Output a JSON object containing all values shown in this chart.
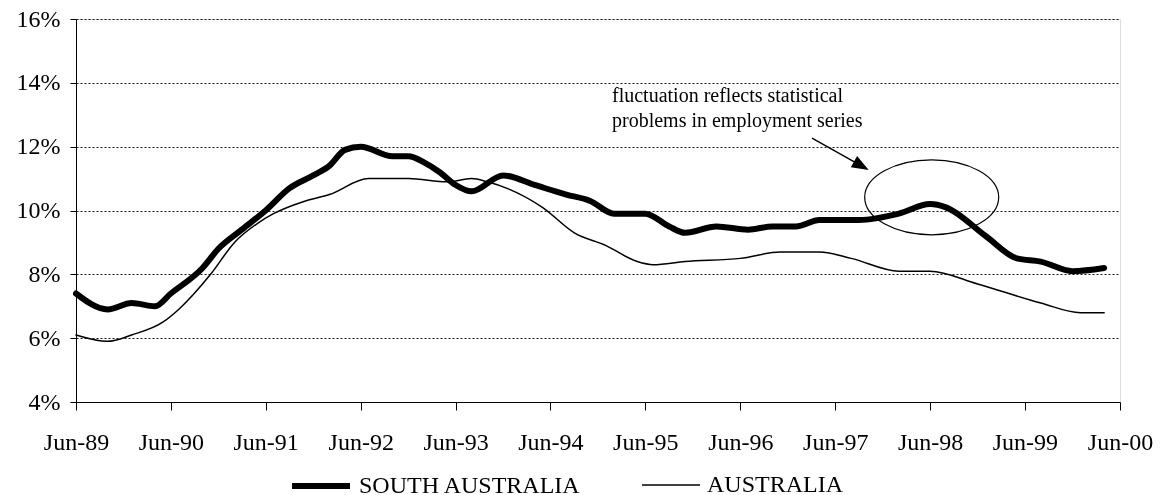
{
  "chart_data": {
    "type": "line",
    "xlim": [
      "1989-06",
      "2000-06"
    ],
    "xticks": [
      {
        "value": "1989-06",
        "label": "Jun-89"
      },
      {
        "value": "1990-06",
        "label": "Jun-90"
      },
      {
        "value": "1991-06",
        "label": "Jun-91"
      },
      {
        "value": "1992-06",
        "label": "Jun-92"
      },
      {
        "value": "1993-06",
        "label": "Jun-93"
      },
      {
        "value": "1994-06",
        "label": "Jun-94"
      },
      {
        "value": "1995-06",
        "label": "Jun-95"
      },
      {
        "value": "1996-06",
        "label": "Jun-96"
      },
      {
        "value": "1997-06",
        "label": "Jun-97"
      },
      {
        "value": "1998-06",
        "label": "Jun-98"
      },
      {
        "value": "1999-06",
        "label": "Jun-99"
      },
      {
        "value": "2000-06",
        "label": "Jun-00"
      }
    ],
    "ylim": [
      4,
      16
    ],
    "yticks": [
      {
        "value": 4,
        "label": "4%"
      },
      {
        "value": 6,
        "label": "6%"
      },
      {
        "value": 8,
        "label": "8%"
      },
      {
        "value": 10,
        "label": "10%"
      },
      {
        "value": 12,
        "label": "12%"
      },
      {
        "value": 14,
        "label": "14%"
      },
      {
        "value": 16,
        "label": "16%"
      }
    ],
    "grid": "y",
    "legend": "bottom",
    "line_style": "solid",
    "series": [
      {
        "name": "SOUTH AUSTRALIA",
        "color": "#000000",
        "x": [
          "1989-06",
          "1989-10",
          "1990-01",
          "1990-04",
          "1990-06",
          "1990-10",
          "1990-12",
          "1991-03",
          "1991-06",
          "1991-09",
          "1991-12",
          "1992-02",
          "1992-04",
          "1992-06",
          "1992-10",
          "1992-12",
          "1993-02",
          "1993-04",
          "1993-06",
          "1993-08",
          "1993-12",
          "1994-04",
          "1994-08",
          "1994-11",
          "1995-02",
          "1995-06",
          "1995-09",
          "1995-11",
          "1996-03",
          "1996-07",
          "1996-10",
          "1997-01",
          "1997-04",
          "1997-09",
          "1998-02",
          "1998-06",
          "1998-08",
          "1999-01",
          "1999-05",
          "1999-08",
          "1999-12",
          "2000-04"
        ],
        "values": [
          7.4,
          6.9,
          7.1,
          7.0,
          7.4,
          8.2,
          8.8,
          9.4,
          10.0,
          10.7,
          11.1,
          11.4,
          11.9,
          12.0,
          11.7,
          11.7,
          11.5,
          11.2,
          10.8,
          10.6,
          11.1,
          10.8,
          10.5,
          10.3,
          9.9,
          9.9,
          9.5,
          9.3,
          9.5,
          9.4,
          9.5,
          9.5,
          9.7,
          9.7,
          9.9,
          10.2,
          10.1,
          9.2,
          8.5,
          8.4,
          8.1,
          8.2
        ]
      },
      {
        "name": "AUSTRALIA",
        "color": "#000000",
        "x": [
          "1989-06",
          "1989-10",
          "1990-01",
          "1990-05",
          "1990-07",
          "1990-11",
          "1991-02",
          "1991-05",
          "1991-07",
          "1991-11",
          "1992-02",
          "1992-07",
          "1992-12",
          "1993-05",
          "1993-08",
          "1993-10",
          "1994-05",
          "1994-09",
          "1995-01",
          "1995-05",
          "1995-07",
          "1995-11",
          "1996-06",
          "1996-11",
          "1997-04",
          "1997-08",
          "1998-02",
          "1998-06",
          "1998-12",
          "1999-08",
          "2000-01",
          "2000-04"
        ],
        "values": [
          6.1,
          5.9,
          6.1,
          6.5,
          6.9,
          8.0,
          9.0,
          9.6,
          9.9,
          10.3,
          10.5,
          11.0,
          11.0,
          10.9,
          11.0,
          10.9,
          10.1,
          9.3,
          8.9,
          8.4,
          8.3,
          8.4,
          8.5,
          8.7,
          8.7,
          8.5,
          8.1,
          8.1,
          7.7,
          7.1,
          6.8,
          6.8
        ]
      }
    ],
    "annotations": [
      "fluctuation reflects statistical\nproblems in employment series"
    ]
  }
}
